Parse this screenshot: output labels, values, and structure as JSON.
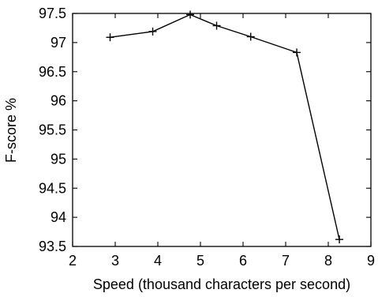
{
  "chart_data": {
    "type": "line",
    "title": "",
    "xlabel": "Speed (thousand characters per second)",
    "ylabel": "F-score %",
    "xlim": [
      2,
      9
    ],
    "ylim": [
      93.5,
      97.5
    ],
    "xticks": [
      "2",
      "3",
      "4",
      "5",
      "6",
      "7",
      "8",
      "9"
    ],
    "yticks": [
      "97.5",
      "97",
      "96.5",
      "96",
      "95.5",
      "95",
      "94.5",
      "94",
      "93.5"
    ],
    "grid": false,
    "series": [
      {
        "marker": "plus",
        "color": "#000000",
        "x": [
          2.88,
          3.88,
          4.76,
          5.38,
          6.18,
          7.26,
          8.26
        ],
        "y": [
          97.09,
          97.19,
          97.48,
          97.29,
          97.1,
          96.83,
          93.62
        ]
      }
    ]
  }
}
